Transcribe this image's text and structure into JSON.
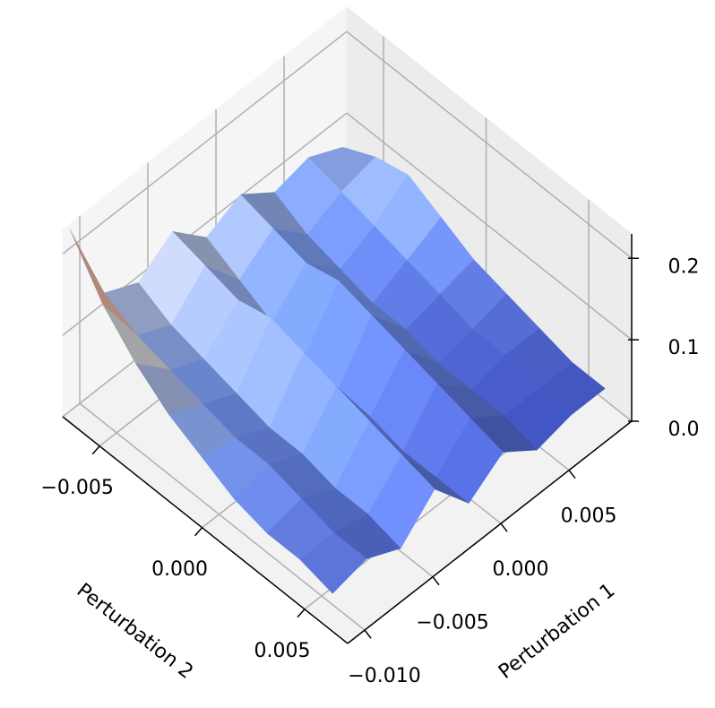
{
  "chart_data": {
    "type": "surface",
    "xlabel": "Perturbation 1",
    "ylabel": "Perturbation 2",
    "x": [
      -0.011,
      -0.0085,
      -0.006,
      -0.0035,
      -0.001,
      0.0015,
      0.004,
      0.0065,
      0.009
    ],
    "y": [
      -0.0066,
      -0.005,
      -0.0034,
      -0.0018,
      -0.0002,
      0.0014,
      0.003,
      0.0046,
      0.0062
    ],
    "z": [
      [
        0.23,
        0.12,
        0.1,
        0.13,
        0.09,
        0.11,
        0.08,
        0.09,
        0.07
      ],
      [
        0.17,
        0.1,
        0.08,
        0.12,
        0.07,
        0.1,
        0.06,
        0.08,
        0.09
      ],
      [
        0.13,
        0.09,
        0.07,
        0.11,
        0.05,
        0.09,
        0.05,
        0.07,
        0.1
      ],
      [
        0.1,
        0.08,
        0.06,
        0.12,
        0.04,
        0.1,
        0.04,
        0.06,
        0.08
      ],
      [
        0.08,
        0.07,
        0.05,
        0.11,
        0.03,
        0.09,
        0.04,
        0.05,
        0.06
      ],
      [
        0.06,
        0.07,
        0.05,
        0.1,
        0.03,
        0.08,
        0.03,
        0.04,
        0.05
      ],
      [
        0.05,
        0.06,
        0.04,
        0.09,
        0.02,
        0.07,
        0.03,
        0.04,
        0.04
      ],
      [
        0.05,
        0.05,
        0.04,
        0.08,
        0.02,
        0.06,
        0.03,
        0.03,
        0.03
      ],
      [
        0.04,
        0.05,
        0.03,
        0.07,
        0.02,
        0.05,
        0.02,
        0.03,
        0.03
      ]
    ],
    "colormap": "coolwarm",
    "xlim": [
      -0.01125,
      0.0096
    ],
    "ylim": [
      -0.0068,
      0.0071
    ],
    "zlim": [
      0,
      0.23
    ],
    "xticks": [
      {
        "value": -0.01,
        "label": "−0.010"
      },
      {
        "value": -0.005,
        "label": "−0.005"
      },
      {
        "value": 0,
        "label": "0.000"
      },
      0.005
    ],
    "yticks": [
      {
        "value": -0.005,
        "label": "−0.005"
      },
      {
        "value": 0,
        "label": "0.000"
      },
      0.005
    ],
    "zticks": [
      {
        "value": 0,
        "label": "0.0"
      },
      0.1,
      0.2
    ],
    "grid": true
  }
}
